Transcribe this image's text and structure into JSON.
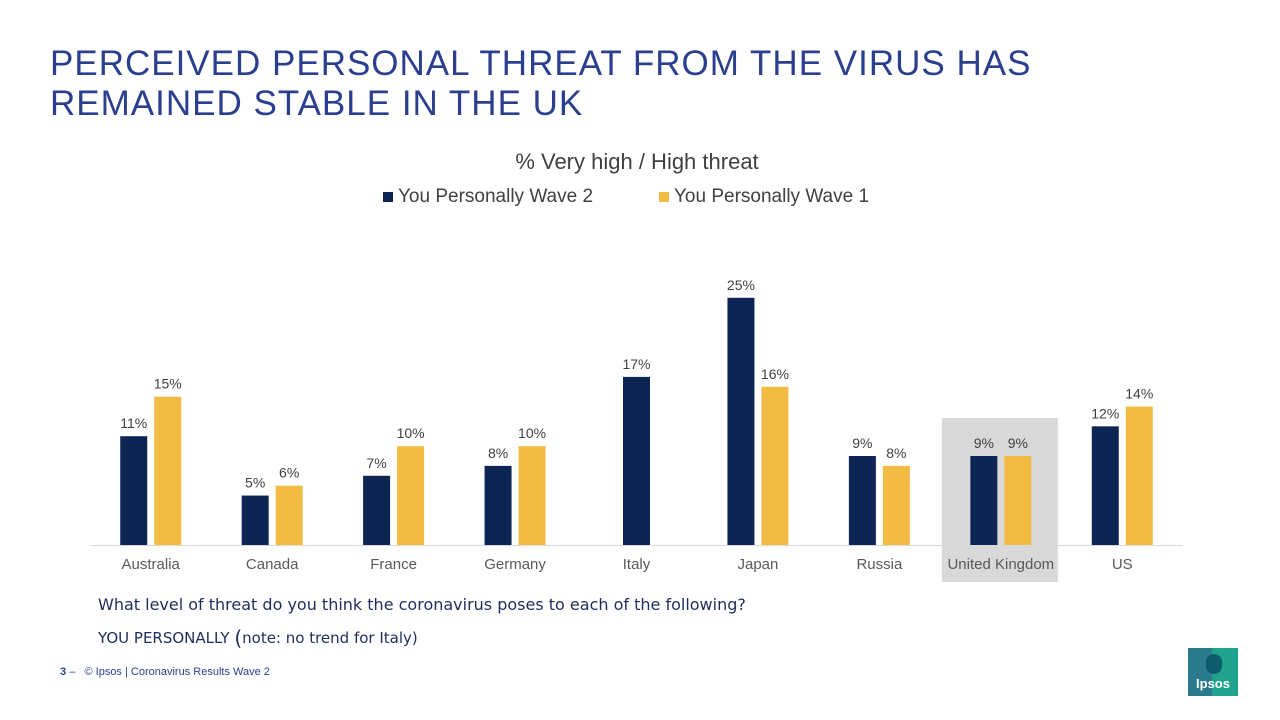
{
  "slide": {
    "title": "PERCEIVED PERSONAL THREAT FROM THE VIRUS HAS REMAINED STABLE IN THE UK",
    "question": "What level of threat do you think the coronavirus poses to each of the following?",
    "subject_label": "YOU PERSONALLY",
    "paren": "(",
    "note": "note: no trend for Italy)",
    "page_number": "3",
    "page_sep": "–",
    "footer": "© Ipsos | Coronavirus Results Wave 2",
    "logo_text": "Ipsos"
  },
  "colors": {
    "title": "#2b3f8f",
    "wave2": "#0c2553",
    "wave1": "#f2bc44",
    "highlight": "#d9d9d9",
    "axis": "#d9d9d9",
    "label": "#404040"
  },
  "chart_data": {
    "type": "bar",
    "title": "% Very high / High threat",
    "categories": [
      "Australia",
      "Canada",
      "France",
      "Germany",
      "Italy",
      "Japan",
      "Russia",
      "United Kingdom",
      "US"
    ],
    "series": [
      {
        "name": "You Personally Wave 2",
        "values": [
          11,
          5,
          7,
          8,
          17,
          25,
          9,
          9,
          12
        ]
      },
      {
        "name": "You Personally Wave 1",
        "values": [
          15,
          6,
          10,
          10,
          null,
          16,
          8,
          9,
          14
        ]
      }
    ],
    "value_suffix": "%",
    "highlight_category": "United Kingdom",
    "ylim": [
      0,
      27
    ],
    "legend": "top-center",
    "grid": false
  }
}
